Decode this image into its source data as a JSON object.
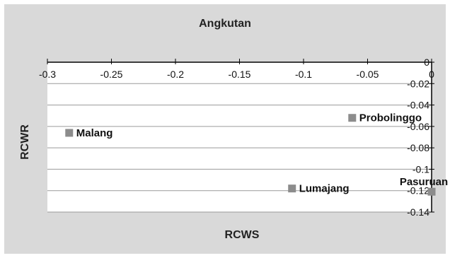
{
  "chart_data": {
    "type": "scatter",
    "title": "Angkutan",
    "xlabel": "RCWS",
    "ylabel": "RCWR",
    "xlim": [
      -0.3,
      0
    ],
    "ylim": [
      -0.14,
      0
    ],
    "x_ticks": [
      "-0.3",
      "-0.25",
      "-0.2",
      "-0.15",
      "-0.1",
      "-0.05",
      "0"
    ],
    "y_ticks": [
      "0",
      "-0.02",
      "-0.04",
      "-0.06",
      "-0.08",
      "-0.1",
      "-0.12",
      "-0.14"
    ],
    "grid": true,
    "marker_color": "#8c8c8c",
    "points": [
      {
        "label": "Malang",
        "x": -0.283,
        "y": -0.066
      },
      {
        "label": "Probolinggo",
        "x": -0.062,
        "y": -0.052
      },
      {
        "label": "Lumajang",
        "x": -0.109,
        "y": -0.118
      },
      {
        "label": "Pasuruan",
        "x": 0,
        "y": -0.121
      }
    ]
  }
}
